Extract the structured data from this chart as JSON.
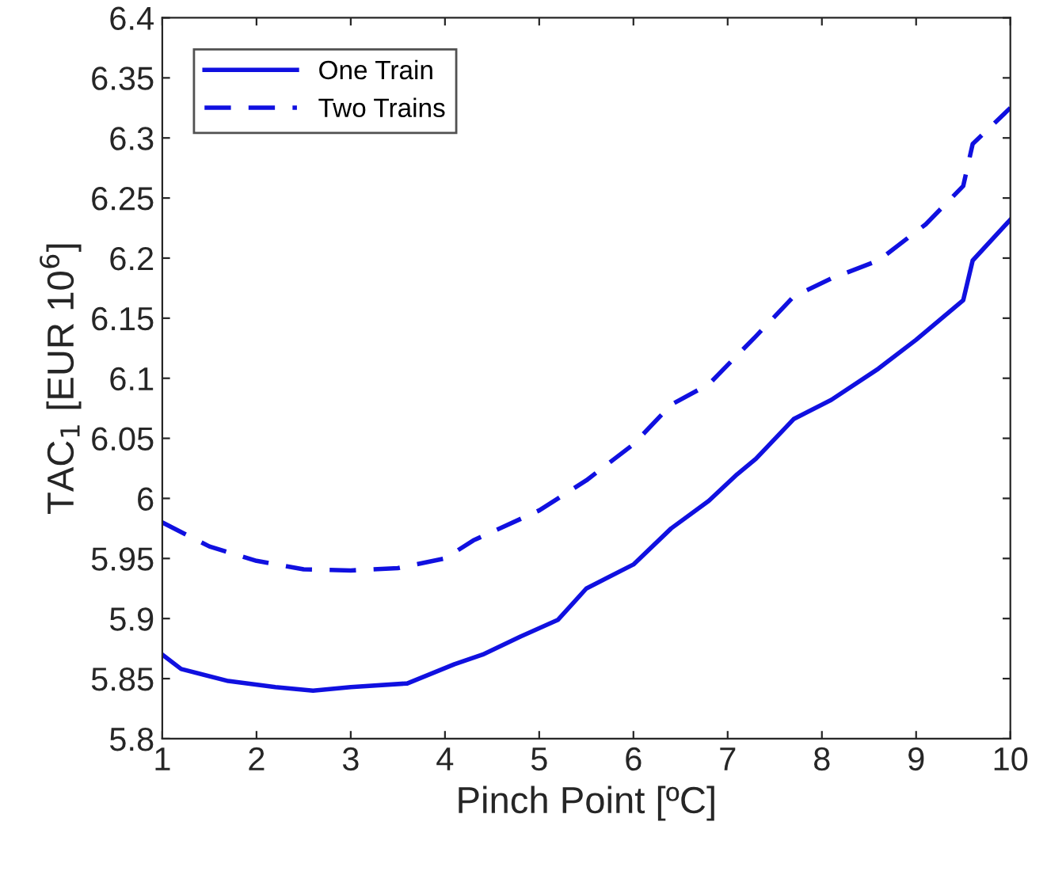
{
  "chart_data": {
    "type": "line",
    "xlabel": "Pinch Point [ºC]",
    "ylabel": "TAC$_{1}$ [EUR 10$^{6}$]",
    "xlim": [
      1,
      10
    ],
    "xticks": [
      1,
      2,
      3,
      4,
      5,
      6,
      7,
      8,
      9,
      10
    ],
    "ylim": [
      5.8,
      6.4
    ],
    "yticks": [
      5.8,
      5.85,
      5.9,
      5.95,
      6,
      6.05,
      6.1,
      6.15,
      6.2,
      6.25,
      6.3,
      6.35,
      6.4
    ],
    "grid": false,
    "legend": "top left",
    "marker": "none",
    "series": [
      {
        "name": "One Train",
        "color": "#1010e0",
        "line_style": "solid",
        "x": [
          1,
          1.2,
          1.7,
          2.2,
          2.6,
          3.0,
          3.6,
          4.1,
          4.4,
          4.8,
          5.2,
          5.5,
          6.0,
          6.4,
          6.8,
          7.1,
          7.3,
          7.7,
          8.1,
          8.6,
          9.0,
          9.5,
          9.6,
          10
        ],
        "values": [
          5.87,
          5.858,
          5.848,
          5.843,
          5.84,
          5.843,
          5.846,
          5.862,
          5.87,
          5.885,
          5.899,
          5.925,
          5.945,
          5.975,
          5.998,
          6.02,
          6.033,
          6.066,
          6.082,
          6.108,
          6.132,
          6.165,
          6.198,
          6.232
        ]
      },
      {
        "name": "Two Trains",
        "color": "#1010e0",
        "line_style": "dashed",
        "x": [
          1,
          1.5,
          2.0,
          2.5,
          3.0,
          3.5,
          4.0,
          4.3,
          5.0,
          5.5,
          6.0,
          6.4,
          6.8,
          7.3,
          7.7,
          8.1,
          8.6,
          9.1,
          9.5,
          9.6,
          10
        ],
        "values": [
          5.98,
          5.96,
          5.948,
          5.941,
          5.94,
          5.942,
          5.95,
          5.965,
          5.99,
          6.015,
          6.045,
          6.078,
          6.095,
          6.135,
          6.168,
          6.183,
          6.198,
          6.228,
          6.26,
          6.295,
          6.325
        ]
      }
    ]
  }
}
